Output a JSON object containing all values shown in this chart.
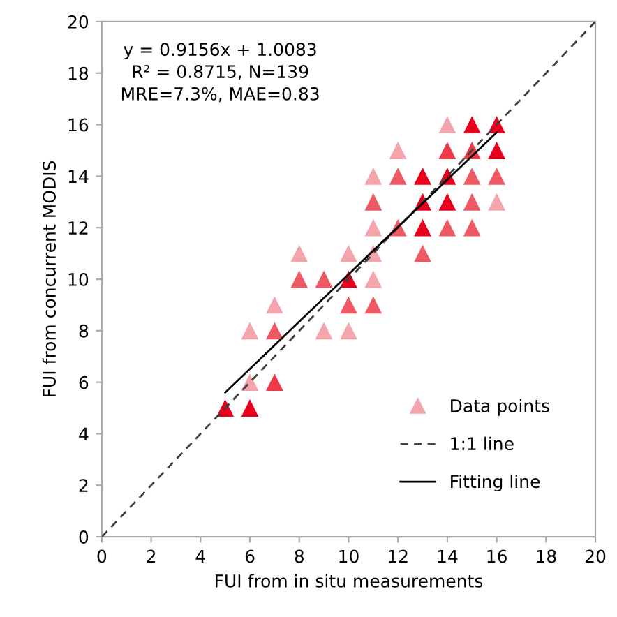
{
  "chart_data": {
    "type": "scatter",
    "xlabel": "FUI from in situ measurements",
    "ylabel": "FUI from concurrent MODIS",
    "xlim": [
      0,
      20
    ],
    "ylim": [
      0,
      20
    ],
    "xticks": [
      0,
      2,
      4,
      6,
      8,
      10,
      12,
      14,
      16,
      18,
      20
    ],
    "yticks": [
      0,
      2,
      4,
      6,
      8,
      10,
      12,
      14,
      16,
      18,
      20
    ],
    "grid": false,
    "legend": "bottom right",
    "annotations": [
      "y = 0.9156x + 1.0083",
      "R² = 0.8715, N=139",
      "MRE=7.3%, MAE=0.83"
    ],
    "series": [
      {
        "name": "Data points",
        "marker": "triangle",
        "color": "#f4a5ab",
        "x": [
          14,
          15,
          16,
          12,
          14,
          15,
          16,
          11,
          12,
          13,
          14,
          15,
          16,
          11,
          13,
          14,
          15,
          16,
          11,
          12,
          13,
          14,
          15,
          8,
          10,
          11,
          13,
          8,
          9,
          10,
          11,
          7,
          10,
          11,
          6,
          7,
          9,
          10,
          6,
          7,
          5,
          6
        ],
        "values": [
          16,
          16,
          16,
          15,
          15,
          15,
          15,
          14,
          14,
          14,
          14,
          14,
          14,
          13,
          13,
          13,
          13,
          13,
          12,
          12,
          12,
          12,
          12,
          11,
          11,
          11,
          11,
          10,
          10,
          10,
          10,
          9,
          9,
          9,
          8,
          8,
          8,
          8,
          6,
          6,
          5,
          5
        ],
        "colors": [
          "#f4a5ab",
          "#e8001c",
          "#e8001c",
          "#f4a5ab",
          "#ec3a48",
          "#ec3a48",
          "#e8001c",
          "#f4a5ab",
          "#ee5a64",
          "#e8001c",
          "#e8001c",
          "#ee5a64",
          "#ee5a64",
          "#ee5a64",
          "#e8001c",
          "#e8001c",
          "#ee5a64",
          "#f4a5ab",
          "#f4a5ab",
          "#ee5a64",
          "#e8001c",
          "#ee5a64",
          "#ee5a64",
          "#f4a5ab",
          "#f4a5ab",
          "#f4a5ab",
          "#ee5a64",
          "#ee5a64",
          "#ee5a64",
          "#e8001c",
          "#f4a5ab",
          "#f4a5ab",
          "#ee5a64",
          "#ee5a64",
          "#f4a5ab",
          "#ee5a64",
          "#f4a5ab",
          "#f4a5ab",
          "#f4a5ab",
          "#ec3a48",
          "#e8001c",
          "#e8001c"
        ]
      },
      {
        "name": "1:1 line",
        "type": "line",
        "line_style": "dashed",
        "marker": "none",
        "color": "#404040",
        "x": [
          0,
          20
        ],
        "values": [
          0,
          20
        ]
      },
      {
        "name": "Fitting line",
        "type": "line",
        "line_style": "solid",
        "marker": "none",
        "color": "#000000",
        "x": [
          5,
          16
        ],
        "values": [
          5.6,
          15.7
        ]
      }
    ]
  }
}
